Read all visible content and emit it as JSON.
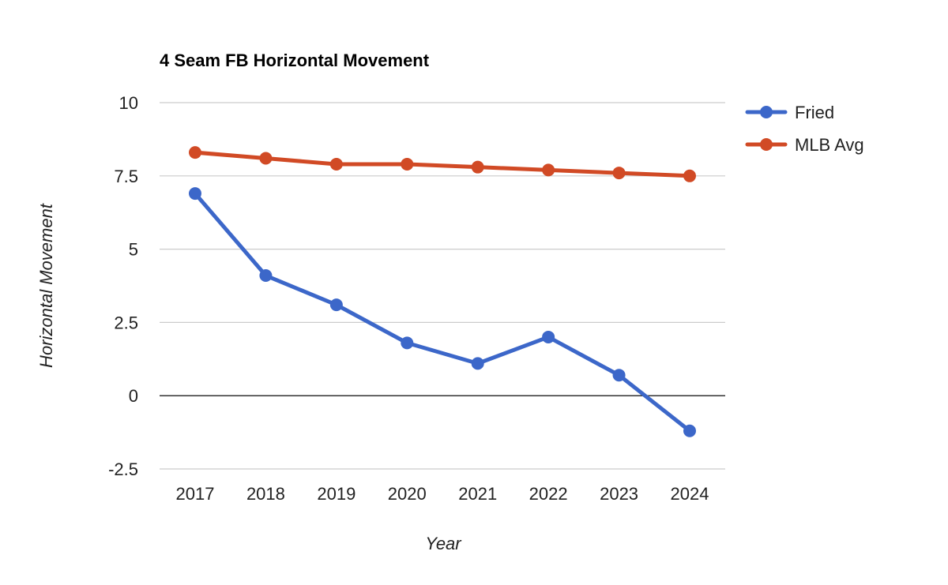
{
  "chart_data": {
    "type": "line",
    "title": "4 Seam FB Horizontal Movement",
    "xlabel": "Year",
    "ylabel": "Horizontal Movement",
    "categories": [
      "2017",
      "2018",
      "2019",
      "2020",
      "2021",
      "2022",
      "2023",
      "2024"
    ],
    "ylim": [
      -2.5,
      10
    ],
    "yticks": [
      -2.5,
      0,
      2.5,
      5,
      7.5,
      10
    ],
    "ytick_labels": [
      "-2.5",
      "0",
      "2.5",
      "5",
      "7.5",
      "10"
    ],
    "grid": true,
    "legend_position": "right",
    "series": [
      {
        "name": "Fried",
        "color": "#3c67c9",
        "values": [
          6.9,
          4.1,
          3.1,
          1.8,
          1.1,
          2.0,
          0.7,
          -1.2
        ]
      },
      {
        "name": "MLB Avg",
        "color": "#d14a25",
        "values": [
          8.3,
          8.1,
          7.9,
          7.9,
          7.8,
          7.7,
          7.6,
          7.5
        ]
      }
    ]
  }
}
